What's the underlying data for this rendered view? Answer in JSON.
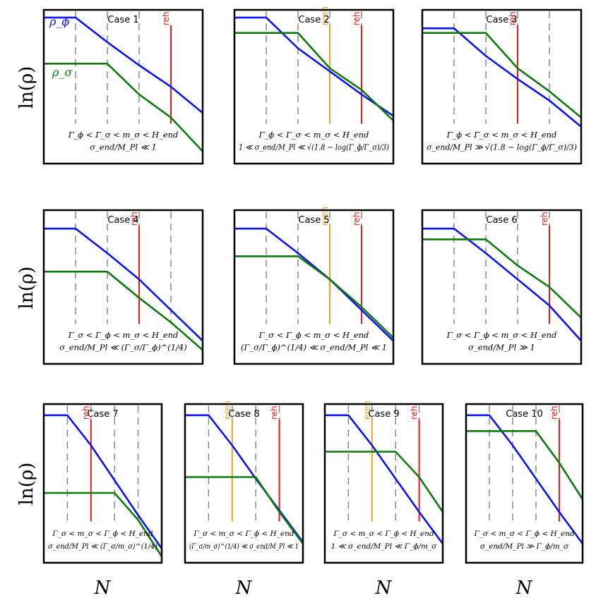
{
  "figure": {
    "ylabel": "ln(ρ)",
    "xlabel": "N",
    "legend": {
      "rho_phi": "ρ_ϕ",
      "rho_sigma": "ρ_σ"
    },
    "colors": {
      "phi": "#0a14f0",
      "sigma": "#0e7a0e",
      "reh": "#f01818",
      "ereh": "#f0a020",
      "frame": "#000000",
      "grid": "#808080"
    },
    "line_labels": {
      "reh": "reh",
      "ereh": "ereh"
    }
  },
  "chart_data": [
    {
      "type": "line",
      "title": "Case 1",
      "condition": "Γ_ϕ < Γ_σ < m_σ < H_end",
      "regime": "σ_end/M_Pl ≪ 1",
      "xlim": [
        0,
        1
      ],
      "ylim": [
        0,
        1
      ],
      "grid_x": [
        0.2,
        0.4,
        0.6
      ],
      "series": [
        {
          "name": "ρ_ϕ",
          "x": [
            0,
            0.2,
            0.4,
            0.6,
            0.8,
            1
          ],
          "y": [
            0.95,
            0.95,
            0.79,
            0.64,
            0.5,
            0.33
          ]
        },
        {
          "name": "ρ_σ",
          "x": [
            0,
            0.2,
            0.4,
            0.6,
            0.8,
            1
          ],
          "y": [
            0.65,
            0.65,
            0.65,
            0.45,
            0.3,
            0.08
          ]
        }
      ],
      "vlines": [
        {
          "kind": "reh",
          "x": 0.8
        }
      ]
    },
    {
      "type": "line",
      "title": "Case 2",
      "condition": "Γ_ϕ < Γ_σ < m_σ < H_end",
      "regime": "1 ≪ σ_end/M_Pl ≪ √(1.8 − log(Γ_ϕ/Γ_σ)/3)",
      "xlim": [
        0,
        1
      ],
      "ylim": [
        0,
        1
      ],
      "grid_x": [
        0.2,
        0.4,
        0.6,
        0.8
      ],
      "series": [
        {
          "name": "ρ_ϕ",
          "x": [
            0,
            0.2,
            0.4,
            0.6,
            0.8,
            1
          ],
          "y": [
            0.95,
            0.95,
            0.75,
            0.6,
            0.45,
            0.31
          ]
        },
        {
          "name": "ρ_σ",
          "x": [
            0,
            0.2,
            0.4,
            0.6,
            0.8,
            1
          ],
          "y": [
            0.85,
            0.85,
            0.85,
            0.62,
            0.48,
            0.28
          ]
        }
      ],
      "vlines": [
        {
          "kind": "ereh",
          "x": 0.6
        },
        {
          "kind": "reh",
          "x": 0.8
        }
      ]
    },
    {
      "type": "line",
      "title": "Case 3",
      "condition": "Γ_ϕ < Γ_σ < m_σ < H_end",
      "regime": "σ_end/M_Pl ≫ √(1.8 − log(Γ_ϕ/Γ_σ)/3)",
      "xlim": [
        0,
        1
      ],
      "ylim": [
        0,
        1
      ],
      "grid_x": [
        0.2,
        0.4,
        0.6,
        0.8
      ],
      "series": [
        {
          "name": "ρ_ϕ",
          "x": [
            0,
            0.2,
            0.4,
            0.6,
            0.8,
            1
          ],
          "y": [
            0.88,
            0.88,
            0.7,
            0.55,
            0.41,
            0.24
          ]
        },
        {
          "name": "ρ_σ",
          "x": [
            0,
            0.2,
            0.4,
            0.6,
            0.8,
            1
          ],
          "y": [
            0.85,
            0.85,
            0.85,
            0.62,
            0.47,
            0.3
          ]
        }
      ],
      "vlines": [
        {
          "kind": "reh",
          "x": 0.6
        }
      ]
    },
    {
      "type": "line",
      "title": "Case 4",
      "condition": "Γ_σ < Γ_ϕ < m_σ < H_end",
      "regime": "σ_end/M_Pl ≪ (Γ_σ/Γ_ϕ)^(1/4)",
      "xlim": [
        0,
        1
      ],
      "ylim": [
        0,
        1
      ],
      "grid_x": [
        0.2,
        0.4,
        0.6,
        0.8
      ],
      "series": [
        {
          "name": "ρ_ϕ",
          "x": [
            0,
            0.2,
            0.4,
            0.6,
            0.8,
            1
          ],
          "y": [
            0.88,
            0.88,
            0.72,
            0.55,
            0.35,
            0.15
          ]
        },
        {
          "name": "ρ_σ",
          "x": [
            0,
            0.2,
            0.4,
            0.6,
            0.8,
            1
          ],
          "y": [
            0.6,
            0.6,
            0.6,
            0.43,
            0.27,
            0.09
          ]
        }
      ],
      "vlines": [
        {
          "kind": "reh",
          "x": 0.6
        }
      ]
    },
    {
      "type": "line",
      "title": "Case 5",
      "condition": "Γ_σ < Γ_ϕ < m_σ < H_end",
      "regime": "(Γ_σ/Γ_ϕ)^(1/4) ≪ σ_end/M_Pl ≪ 1",
      "xlim": [
        0,
        1
      ],
      "ylim": [
        0,
        1
      ],
      "grid_x": [
        0.2,
        0.4,
        0.6,
        0.8
      ],
      "series": [
        {
          "name": "ρ_ϕ",
          "x": [
            0,
            0.2,
            0.4,
            0.6,
            0.8,
            1
          ],
          "y": [
            0.88,
            0.88,
            0.72,
            0.55,
            0.35,
            0.15
          ]
        },
        {
          "name": "ρ_σ",
          "x": [
            0,
            0.2,
            0.4,
            0.6,
            0.8,
            1
          ],
          "y": [
            0.7,
            0.7,
            0.7,
            0.55,
            0.37,
            0.17
          ]
        }
      ],
      "vlines": [
        {
          "kind": "ereh",
          "x": 0.6
        },
        {
          "kind": "reh",
          "x": 0.8
        }
      ]
    },
    {
      "type": "line",
      "title": "Case 6",
      "condition": "Γ_σ < Γ_ϕ < m_σ < H_end",
      "regime": "σ_end/M_Pl ≫ 1",
      "xlim": [
        0,
        1
      ],
      "ylim": [
        0,
        1
      ],
      "grid_x": [
        0.2,
        0.4,
        0.6,
        0.8
      ],
      "series": [
        {
          "name": "ρ_ϕ",
          "x": [
            0,
            0.2,
            0.4,
            0.6,
            0.8,
            1
          ],
          "y": [
            0.88,
            0.88,
            0.72,
            0.55,
            0.38,
            0.15
          ]
        },
        {
          "name": "ρ_σ",
          "x": [
            0,
            0.2,
            0.4,
            0.6,
            0.8,
            1
          ],
          "y": [
            0.81,
            0.81,
            0.81,
            0.64,
            0.5,
            0.3
          ]
        }
      ],
      "vlines": [
        {
          "kind": "reh",
          "x": 0.8
        }
      ]
    },
    {
      "type": "line",
      "title": "Case 7",
      "condition": "Γ_σ < m_σ < Γ_ϕ < H_end",
      "regime": "σ_end/M_Pl ≪ (Γ_σ/m_σ)^(1/4)",
      "xlim": [
        0,
        1
      ],
      "ylim": [
        0,
        1
      ],
      "grid_x": [
        0.2,
        0.4,
        0.6,
        0.8
      ],
      "series": [
        {
          "name": "ρ_ϕ",
          "x": [
            0,
            0.2,
            0.4,
            0.6,
            0.8,
            1
          ],
          "y": [
            0.93,
            0.93,
            0.74,
            0.52,
            0.3,
            0.09
          ]
        },
        {
          "name": "ρ_σ",
          "x": [
            0,
            0.2,
            0.4,
            0.6,
            0.8,
            1
          ],
          "y": [
            0.44,
            0.44,
            0.44,
            0.44,
            0.27,
            0.04
          ]
        }
      ],
      "vlines": [
        {
          "kind": "reh",
          "x": 0.4
        }
      ]
    },
    {
      "type": "line",
      "title": "Case 8",
      "condition": "Γ_σ < m_σ < Γ_ϕ < H_end",
      "regime": "(Γ_σ/m_σ)^(1/4) ≪ σ_end/M_Pl ≪ 1",
      "xlim": [
        0,
        1
      ],
      "ylim": [
        0,
        1
      ],
      "grid_x": [
        0.2,
        0.4,
        0.6,
        0.8
      ],
      "series": [
        {
          "name": "ρ_ϕ",
          "x": [
            0,
            0.2,
            0.4,
            0.6,
            0.8,
            1
          ],
          "y": [
            0.93,
            0.93,
            0.74,
            0.53,
            0.33,
            0.13
          ]
        },
        {
          "name": "ρ_σ",
          "x": [
            0,
            0.2,
            0.4,
            0.6,
            0.8,
            1
          ],
          "y": [
            0.54,
            0.54,
            0.54,
            0.54,
            0.32,
            0.12
          ]
        }
      ],
      "vlines": [
        {
          "kind": "ereh",
          "x": 0.4
        },
        {
          "kind": "reh",
          "x": 0.8
        }
      ]
    },
    {
      "type": "line",
      "title": "Case 9",
      "condition": "Γ_σ < m_σ < Γ_ϕ < H_end",
      "regime": "1 ≪ σ_end/M_Pl ≪ Γ_ϕ/m_σ",
      "xlim": [
        0,
        1
      ],
      "ylim": [
        0,
        1
      ],
      "grid_x": [
        0.2,
        0.4,
        0.6,
        0.8
      ],
      "series": [
        {
          "name": "ρ_ϕ",
          "x": [
            0,
            0.2,
            0.4,
            0.6,
            0.8,
            1
          ],
          "y": [
            0.93,
            0.93,
            0.74,
            0.53,
            0.32,
            0.12
          ]
        },
        {
          "name": "ρ_σ",
          "x": [
            0,
            0.2,
            0.4,
            0.6,
            0.8,
            1
          ],
          "y": [
            0.7,
            0.7,
            0.7,
            0.7,
            0.54,
            0.32
          ]
        }
      ],
      "vlines": [
        {
          "kind": "ereh",
          "x": 0.4
        },
        {
          "kind": "reh",
          "x": 0.8
        }
      ]
    },
    {
      "type": "line",
      "title": "Case 10",
      "condition": "Γ_σ < m_σ < Γ_ϕ < H_end",
      "regime": "σ_end/M_Pl ≫ Γ_ϕ/m_σ",
      "xlim": [
        0,
        1
      ],
      "ylim": [
        0,
        1
      ],
      "grid_x": [
        0.2,
        0.4,
        0.6,
        0.8
      ],
      "series": [
        {
          "name": "ρ_ϕ",
          "x": [
            0,
            0.2,
            0.4,
            0.6,
            0.8,
            1
          ],
          "y": [
            0.93,
            0.93,
            0.74,
            0.53,
            0.32,
            0.12
          ]
        },
        {
          "name": "ρ_σ",
          "x": [
            0,
            0.2,
            0.4,
            0.6,
            0.8,
            1
          ],
          "y": [
            0.83,
            0.83,
            0.83,
            0.83,
            0.63,
            0.4
          ]
        }
      ],
      "vlines": [
        {
          "kind": "reh",
          "x": 0.8
        }
      ]
    }
  ]
}
